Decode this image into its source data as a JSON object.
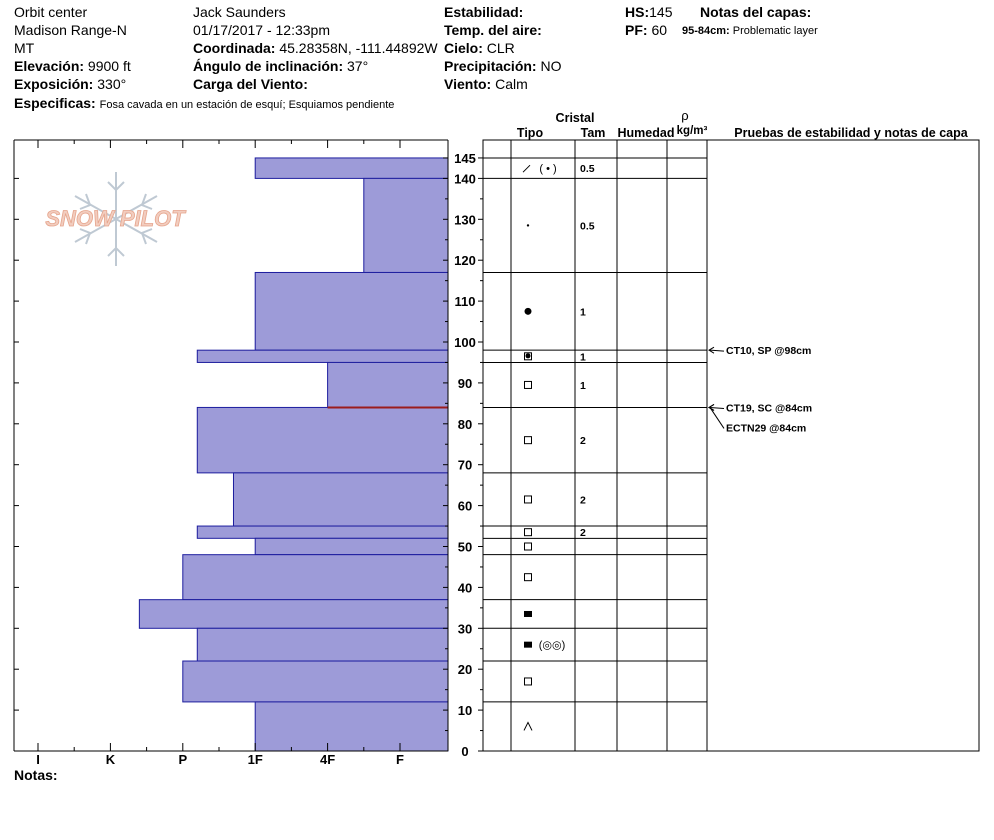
{
  "header": {
    "location": "Orbit center",
    "range": "Madison Range-N",
    "state": "MT",
    "elevation_label": "Elevación:",
    "elevation_value": "9900 ft",
    "aspect_label": "Exposición:",
    "aspect_value": "330°",
    "specifics_label": "Especificas:",
    "specifics_value": "Fosa cavada en un estación de esquí; Esquiamos pendiente",
    "observer": "Jack Saunders",
    "datetime": "01/17/2017 - 12:33pm",
    "coord_label": "Coordinada:",
    "coord_value": "45.28358N, -111.44892W",
    "slope_label": "Ángulo de inclinación:",
    "slope_value": "37°",
    "wind_load_label": "Carga del Viento:",
    "stability_label": "Estabilidad:",
    "air_temp_label": "Temp. del aire:",
    "sky_label": "Cielo:",
    "sky_value": "CLR",
    "precip_label": "Precipitación:",
    "precip_value": "NO",
    "wind_label": "Viento:",
    "wind_value": "Calm",
    "hs_label": "HS:",
    "hs_value": "145",
    "pf_label": "PF:",
    "pf_value": "60",
    "layer_notes_label": "Notas del capas:",
    "layer_note_range": "95-84cm:",
    "layer_note_text": "Problematic layer",
    "notes_label": "Notas:"
  },
  "logo": {
    "text": "SNOW PILOT"
  },
  "columns": {
    "crystal": "Cristal",
    "type": "Tipo",
    "size": "Tam",
    "humidity": "Humedad",
    "rho": "ρ",
    "density_unit": "kg/m³",
    "tests": "Pruebas de estabilidad y notas de capa"
  },
  "colors": {
    "hardness_fill": "#9d9bd8",
    "hardness_stroke": "#1d1d9e",
    "weak_layer": "#9c1c1c",
    "grid": "#000000"
  },
  "chart_data": {
    "type": "snow_profile",
    "height_axis": {
      "ticks": [
        "0",
        "10",
        "20",
        "30",
        "40",
        "50",
        "60",
        "70",
        "80",
        "90",
        "100",
        "110",
        "120",
        "130",
        "140",
        "145"
      ],
      "min": 0,
      "max": 145
    },
    "hardness_axis": {
      "labels": [
        "I",
        "K",
        "P",
        "1F",
        "4F",
        "F"
      ],
      "order_left_to_right": "hardest-to-softest"
    },
    "layers": [
      {
        "top": 145,
        "bottom": 140,
        "hardness": "1F",
        "hardness_index": 3
      },
      {
        "top": 140,
        "bottom": 117,
        "hardness": "4F-F",
        "hardness_index": 4.5
      },
      {
        "top": 117,
        "bottom": 98,
        "hardness": "1F",
        "hardness_index": 3
      },
      {
        "top": 98,
        "bottom": 95,
        "hardness": "P+",
        "hardness_index": 2.2
      },
      {
        "top": 95,
        "bottom": 84,
        "hardness": "4F",
        "hardness_index": 4
      },
      {
        "top": 84,
        "bottom": 68,
        "hardness": "P+",
        "hardness_index": 2.2
      },
      {
        "top": 68,
        "bottom": 55,
        "hardness": "1F+",
        "hardness_index": 2.7
      },
      {
        "top": 55,
        "bottom": 52,
        "hardness": "P+",
        "hardness_index": 2.2
      },
      {
        "top": 52,
        "bottom": 48,
        "hardness": "1F",
        "hardness_index": 3
      },
      {
        "top": 48,
        "bottom": 37,
        "hardness": "P",
        "hardness_index": 2
      },
      {
        "top": 37,
        "bottom": 30,
        "hardness": "K+",
        "hardness_index": 1.4
      },
      {
        "top": 30,
        "bottom": 22,
        "hardness": "P+",
        "hardness_index": 2.2
      },
      {
        "top": 22,
        "bottom": 12,
        "hardness": "P",
        "hardness_index": 2
      },
      {
        "top": 12,
        "bottom": 0,
        "hardness": "1F",
        "hardness_index": 3
      }
    ],
    "weak_layer_height": 84,
    "crystal_rows": [
      {
        "top": 145,
        "bottom": 140,
        "type": "decomposing-fragments",
        "size": "0.5"
      },
      {
        "top": 140,
        "bottom": 117,
        "type": "small-rounded",
        "size": "0.5"
      },
      {
        "top": 117,
        "bottom": 98,
        "type": "rounded",
        "size": "1"
      },
      {
        "top": 98,
        "bottom": 95,
        "type": "rounded-faceted",
        "size": "1"
      },
      {
        "top": 95,
        "bottom": 84,
        "type": "faceted",
        "size": "1"
      },
      {
        "top": 84,
        "bottom": 68,
        "type": "faceted",
        "size": "2"
      },
      {
        "top": 68,
        "bottom": 55,
        "type": "faceted",
        "size": "2"
      },
      {
        "top": 55,
        "bottom": 52,
        "type": "faceted",
        "size": "2"
      },
      {
        "top": 52,
        "bottom": 48,
        "type": "faceted",
        "size": ""
      },
      {
        "top": 48,
        "bottom": 37,
        "type": "faceted",
        "size": ""
      },
      {
        "top": 37,
        "bottom": 30,
        "type": "melt-freeze",
        "size": ""
      },
      {
        "top": 30,
        "bottom": 22,
        "type": "melt-freeze-with-grains",
        "size": ""
      },
      {
        "top": 22,
        "bottom": 12,
        "type": "faceted",
        "size": ""
      },
      {
        "top": 12,
        "bottom": 0,
        "type": "depth-hoar",
        "size": ""
      }
    ],
    "tests": [
      {
        "height": 98,
        "label": "CT10, SP @98cm"
      },
      {
        "height": 84,
        "label": "CT19, SC @84cm"
      },
      {
        "height": 84,
        "label": "ECTN29 @84cm"
      }
    ]
  }
}
